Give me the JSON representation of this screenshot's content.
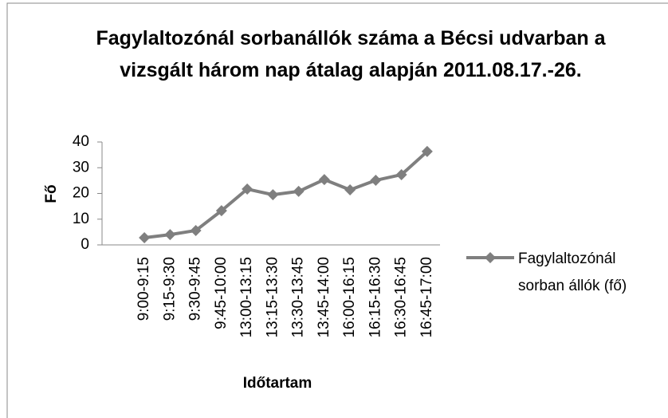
{
  "chart_data": {
    "type": "line",
    "title": "Fagylaltozónál sorbanállók száma a Bécsi udvarban a vizsgált három nap átalag alapján 2011.08.17.-26.",
    "y_label": "Fő",
    "x_label": "Időtartam",
    "categories": [
      "9:00-9:15",
      "9:15-9:30",
      "9:30-9:45",
      "9:45-10:00",
      "13:00-13:15",
      "13:15-13:30",
      "13:30-13:45",
      "13:45-14:00",
      "16:00-16:15",
      "16:15-16:30",
      "16:30-16:45",
      "16:45-17:00"
    ],
    "series": [
      {
        "name": "Fagylaltozónál sorban állók (fő)",
        "color": "#7f7f7f",
        "values": [
          2.8,
          4,
          5.6,
          13.3,
          21.7,
          19.5,
          20.8,
          25.4,
          21.4,
          25.1,
          27.3,
          36.3
        ]
      }
    ],
    "ylim": [
      0,
      40
    ],
    "yticks": [
      0,
      10,
      20,
      30,
      40
    ],
    "grid": false,
    "legend": "right"
  }
}
